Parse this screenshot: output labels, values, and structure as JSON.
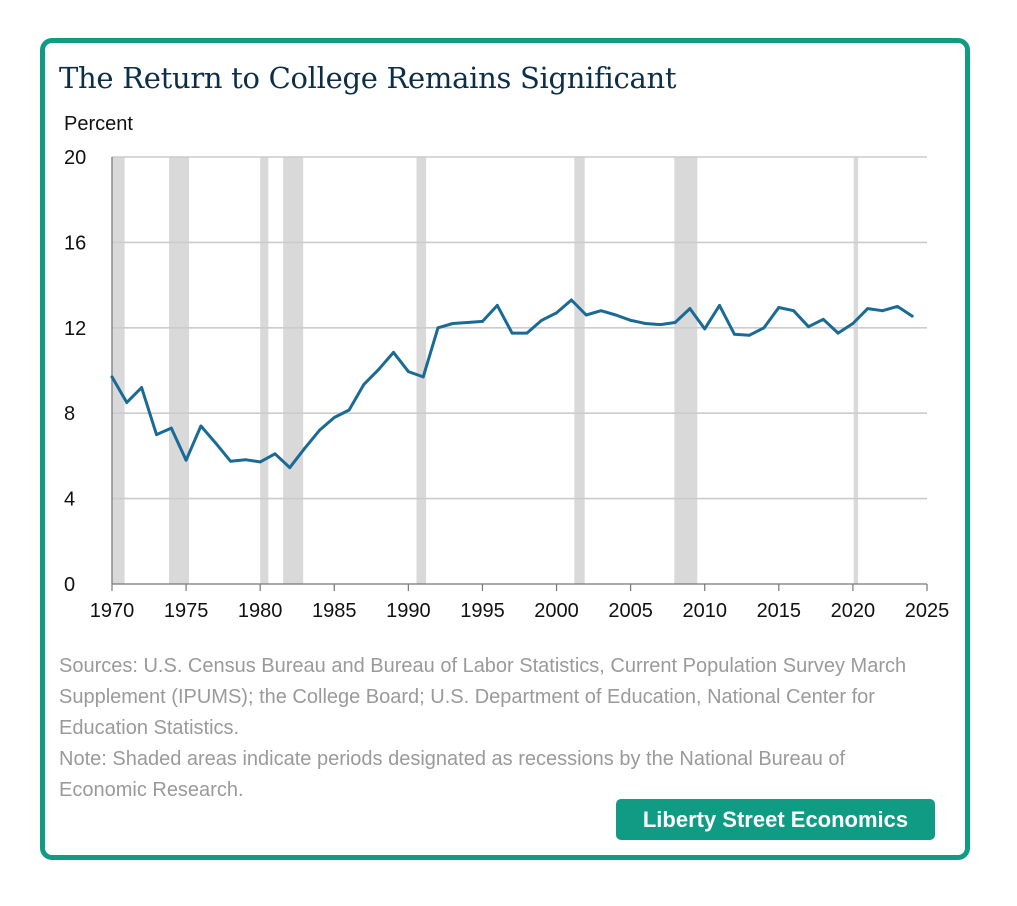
{
  "brand_label": "Liberty Street Economics",
  "sources_text": "Sources: U.S. Census Bureau and Bureau of Labor Statistics, Current Population Survey March Supplement (IPUMS); the College Board; U.S. Department of Education, National Center for Education Statistics.",
  "note_text": "Note: Shaded areas indicate periods designated as recessions by the National Bureau of Economic Research.",
  "colors": {
    "accent": "#0f9b84",
    "line": "#1a6a96",
    "recession": "#d9d9d9",
    "grid": "#cccccc",
    "title": "#0c2f47"
  },
  "chart_data": {
    "type": "line",
    "title": "The Return to College Remains Significant",
    "ylabel": "Percent",
    "xlabel": "",
    "xlim": [
      1970,
      2025
    ],
    "ylim": [
      0,
      20
    ],
    "x_ticks": [
      1970,
      1975,
      1980,
      1985,
      1990,
      1995,
      2000,
      2005,
      2010,
      2015,
      2020,
      2025
    ],
    "y_ticks": [
      0,
      4,
      8,
      12,
      16,
      20
    ],
    "grid": true,
    "recessions": [
      [
        1969.95,
        1970.85
      ],
      [
        1973.85,
        1975.2
      ],
      [
        1980.0,
        1980.55
      ],
      [
        1981.55,
        1982.9
      ],
      [
        1990.55,
        1991.2
      ],
      [
        2001.2,
        2001.9
      ],
      [
        2007.95,
        2009.5
      ],
      [
        2020.05,
        2020.35
      ]
    ],
    "series": [
      {
        "x": [
          1970,
          1971,
          1972,
          1973,
          1974,
          1975,
          1976,
          1977,
          1978,
          1979,
          1980,
          1981,
          1982,
          1983,
          1984,
          1985,
          1986,
          1987,
          1988,
          1989,
          1990,
          1991,
          1992,
          1993,
          1994,
          1995,
          1996,
          1997,
          1998,
          1999,
          2000,
          2001,
          2002,
          2003,
          2004,
          2005,
          2006,
          2007,
          2008,
          2009,
          2010,
          2011,
          2012,
          2013,
          2014,
          2015,
          2016,
          2017,
          2018,
          2019,
          2020,
          2021,
          2022,
          2023,
          2024
        ],
        "values": [
          9.7,
          8.5,
          9.2,
          7.0,
          7.3,
          5.8,
          7.4,
          6.6,
          5.75,
          5.82,
          5.72,
          6.1,
          5.45,
          6.35,
          7.2,
          7.8,
          8.15,
          9.35,
          10.05,
          10.85,
          9.95,
          9.7,
          12.0,
          12.2,
          12.25,
          12.3,
          13.05,
          11.75,
          11.75,
          12.35,
          12.7,
          13.3,
          12.6,
          12.8,
          12.6,
          12.35,
          12.2,
          12.15,
          12.25,
          12.9,
          11.95,
          13.05,
          11.7,
          11.65,
          12.0,
          12.95,
          12.8,
          12.05,
          12.4,
          11.75,
          12.2,
          12.9,
          12.8,
          13.0,
          12.55
        ]
      }
    ]
  }
}
